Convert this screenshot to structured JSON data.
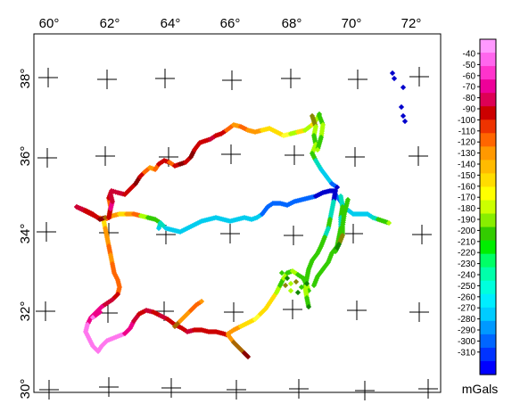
{
  "map": {
    "lon_labels": [
      "60°",
      "62°",
      "64°",
      "66°",
      "68°",
      "70°",
      "72°"
    ],
    "lat_labels": [
      "38°",
      "36°",
      "34°",
      "32°",
      "30°"
    ]
  },
  "colorbar": {
    "unit": "mGals",
    "labels": [
      "-40",
      "-50",
      "-60",
      "-70",
      "-80",
      "-90",
      "-100",
      "-110",
      "-120",
      "-130",
      "-140",
      "-150",
      "-160",
      "-170",
      "-180",
      "-190",
      "-200",
      "-210",
      "-220",
      "-230",
      "-240",
      "-250",
      "-260",
      "-270",
      "-280",
      "-290",
      "-300",
      "-310"
    ]
  },
  "colors": {
    "palette": [
      "#ff99ff",
      "#ff66ee",
      "#ff33cc",
      "#ee0099",
      "#dd0055",
      "#cc0000",
      "#ee3300",
      "#ff6600",
      "#ff9900",
      "#ffbb00",
      "#ffdd00",
      "#ffff00",
      "#ccff00",
      "#88ee00",
      "#33cc00",
      "#00ee00",
      "#00ff66",
      "#00ffaa",
      "#00ffdd",
      "#00eeff",
      "#00ccff",
      "#0099ff",
      "#0066ff",
      "#0033ff",
      "#0000ff"
    ]
  }
}
